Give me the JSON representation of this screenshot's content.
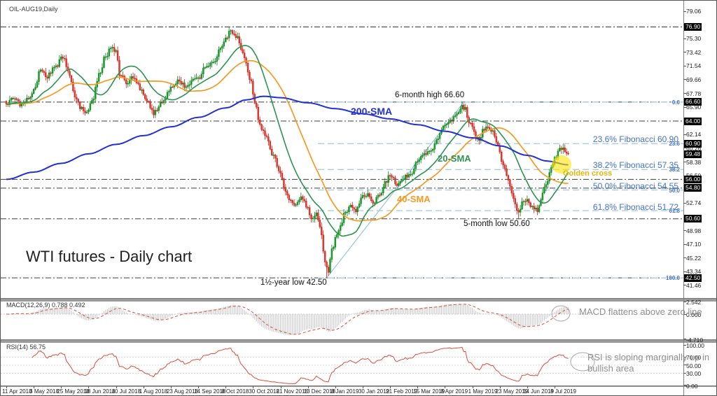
{
  "window": {
    "instrument_label": "OIL-AUG19,Daily"
  },
  "title": "WTI futures - Daily chart",
  "colors": {
    "candle_up": "#12a128",
    "candle_up_edge": "#0a7a17",
    "candle_down": "#ea352b",
    "candle_down_edge": "#bf1f16",
    "sma200": "#2230d4",
    "sma20": "#2b9450",
    "sma40": "#f59a23",
    "fib_line": "#a9cdea",
    "fib_text": "#4472c4",
    "sr_line": "#3f3f3f",
    "trendline": "#9cc3e5",
    "golden_highlight": "#ffe400",
    "golden_text": "#e3b505",
    "macd_hist": "#c9c9c9",
    "macd_signal": "#dd4b39",
    "rsi_line": "#dd4b39",
    "note_gray": "#8f8f8f"
  },
  "chart_data": {
    "type": "candlestick",
    "symbol": "OIL-AUG19",
    "timeframe": "Daily",
    "dates": [
      "11 Apr 2018",
      "3 May 2018",
      "25 May 2018",
      "18 Jun 2018",
      "10 Jul 2018",
      "1 Aug 2018",
      "23 Aug 2018",
      "14 Sep 2018",
      "8 Oct 2018",
      "30 Oct 2018",
      "21 Nov 2018",
      "13 Dec 2018",
      "8 Jan 2019",
      "30 Jan 2019",
      "21 Feb 2019",
      "15 Mar 2019",
      "8 Apr 2019",
      "1 May 2019",
      "23 May 2019",
      "14 Jun 2019",
      "8 Jul 2019"
    ],
    "bars_per_date_tick": 16,
    "price_axis": {
      "ticks": [
        "79.06",
        "77.18",
        "75.30",
        "73.42",
        "71.54",
        "69.66",
        "67.78",
        "65.90",
        "62.14",
        "60.26",
        "58.38",
        "56.50",
        "52.74",
        "48.98",
        "47.10",
        "45.22",
        "43.34",
        "41.46"
      ],
      "boxes": [
        "76.90",
        "66.60",
        "64.00",
        "60.90",
        "59.48",
        "56.00",
        "54.80",
        "50.60",
        "42.50"
      ],
      "current_price": 59.48
    },
    "close_anchors": [
      [
        0,
        66.3
      ],
      [
        5,
        67.2
      ],
      [
        9,
        66.2
      ],
      [
        13,
        67.0
      ],
      [
        16,
        68.2
      ],
      [
        20,
        70.9
      ],
      [
        24,
        70.2
      ],
      [
        28,
        71.3
      ],
      [
        33,
        72.6
      ],
      [
        36,
        71.0
      ],
      [
        40,
        67.3
      ],
      [
        44,
        65.6
      ],
      [
        47,
        64.9
      ],
      [
        50,
        66.8
      ],
      [
        54,
        70.2
      ],
      [
        58,
        73.0
      ],
      [
        62,
        74.1
      ],
      [
        64,
        73.5
      ],
      [
        66,
        70.6
      ],
      [
        70,
        69.4
      ],
      [
        74,
        70.0
      ],
      [
        78,
        68.6
      ],
      [
        82,
        66.9
      ],
      [
        86,
        65.1
      ],
      [
        90,
        66.3
      ],
      [
        96,
        68.4
      ],
      [
        100,
        69.6
      ],
      [
        104,
        68.8
      ],
      [
        108,
        69.4
      ],
      [
        112,
        69.9
      ],
      [
        116,
        71.2
      ],
      [
        121,
        72.0
      ],
      [
        125,
        74.0
      ],
      [
        128,
        75.1
      ],
      [
        131,
        76.3
      ],
      [
        134,
        75.6
      ],
      [
        138,
        73.4
      ],
      [
        142,
        70.0
      ],
      [
        145,
        66.8
      ],
      [
        148,
        63.4
      ],
      [
        152,
        61.5
      ],
      [
        156,
        59.3
      ],
      [
        160,
        56.7
      ],
      [
        163,
        54.3
      ],
      [
        166,
        53.0
      ],
      [
        169,
        52.2
      ],
      [
        172,
        53.8
      ],
      [
        175,
        52.4
      ],
      [
        178,
        50.3
      ],
      [
        181,
        51.2
      ],
      [
        184,
        48.5
      ],
      [
        186,
        44.5
      ],
      [
        188,
        43.2
      ],
      [
        190,
        46.2
      ],
      [
        192,
        47.9
      ],
      [
        195,
        49.8
      ],
      [
        198,
        51.5
      ],
      [
        201,
        52.3
      ],
      [
        204,
        51.6
      ],
      [
        208,
        53.6
      ],
      [
        211,
        54.1
      ],
      [
        214,
        52.6
      ],
      [
        218,
        53.9
      ],
      [
        221,
        55.6
      ],
      [
        224,
        56.4
      ],
      [
        228,
        55.4
      ],
      [
        232,
        56.2
      ],
      [
        236,
        56.9
      ],
      [
        240,
        58.4
      ],
      [
        244,
        59.6
      ],
      [
        248,
        60.1
      ],
      [
        252,
        61.8
      ],
      [
        256,
        63.3
      ],
      [
        260,
        63.9
      ],
      [
        263,
        65.3
      ],
      [
        266,
        66.1
      ],
      [
        268,
        65.6
      ],
      [
        270,
        63.6
      ],
      [
        272,
        63.2
      ],
      [
        274,
        61.8
      ],
      [
        276,
        61.4
      ],
      [
        278,
        62.7
      ],
      [
        281,
        63.1
      ],
      [
        284,
        62.6
      ],
      [
        287,
        60.7
      ],
      [
        289,
        58.6
      ],
      [
        291,
        57.3
      ],
      [
        293,
        56.2
      ],
      [
        295,
        54.1
      ],
      [
        297,
        52.5
      ],
      [
        299,
        51.2
      ],
      [
        301,
        52.8
      ],
      [
        304,
        53.4
      ],
      [
        307,
        52.3
      ],
      [
        310,
        51.9
      ],
      [
        312,
        53.2
      ],
      [
        314,
        54.7
      ],
      [
        316,
        56.0
      ],
      [
        318,
        57.4
      ],
      [
        320,
        58.8
      ],
      [
        322,
        59.9
      ],
      [
        324,
        60.4
      ],
      [
        326,
        59.8
      ],
      [
        328,
        59.48
      ]
    ],
    "sma200_anchors": [
      [
        0,
        56.0
      ],
      [
        16,
        57.0
      ],
      [
        32,
        58.2
      ],
      [
        48,
        59.5
      ],
      [
        64,
        60.8
      ],
      [
        80,
        62.0
      ],
      [
        96,
        63.2
      ],
      [
        112,
        64.5
      ],
      [
        128,
        65.8
      ],
      [
        140,
        66.9
      ],
      [
        150,
        67.4
      ],
      [
        160,
        67.2
      ],
      [
        176,
        66.5
      ],
      [
        192,
        65.7
      ],
      [
        208,
        65.0
      ],
      [
        224,
        64.3
      ],
      [
        240,
        63.5
      ],
      [
        256,
        62.6
      ],
      [
        272,
        61.7
      ],
      [
        288,
        60.6
      ],
      [
        304,
        59.3
      ],
      [
        316,
        58.5
      ],
      [
        328,
        58.0
      ]
    ],
    "smas": [
      {
        "name": "20-SMA",
        "period": 20
      },
      {
        "name": "40-SMA",
        "period": 40
      },
      {
        "name": "200-SMA",
        "period": 200
      }
    ],
    "key_points": {
      "top_2018": {
        "bar": 130,
        "price": 76.9
      },
      "high_6_month": {
        "bar": 266,
        "price": 66.6
      },
      "low_18_month": {
        "bar": 187,
        "price": 42.5
      },
      "low_5_month": {
        "bar": 299,
        "price": 50.6
      },
      "last_close": {
        "bar": 328,
        "price": 59.48
      }
    },
    "fibonacci": {
      "swing_high": 66.6,
      "swing_low": 42.5,
      "levels": [
        {
          "pct": "0.0",
          "price": 66.6
        },
        {
          "pct": "23.6",
          "price": 60.9
        },
        {
          "pct": "38.2",
          "price": 57.35
        },
        {
          "pct": "50.0",
          "price": 54.55
        },
        {
          "pct": "61.8",
          "price": 51.72
        },
        {
          "pct": "100.0",
          "price": 42.5
        }
      ]
    },
    "sr_lines": [
      76.9,
      66.6,
      64.0,
      56.0,
      54.8,
      50.6,
      42.5
    ],
    "trendline": {
      "from_bar": 187,
      "from_price": 42.5,
      "to_bar": 267,
      "to_price": 66.6
    },
    "indicators": {
      "macd": {
        "label": "MACD(12,26,9) 0.788 0.492",
        "fast": 12,
        "slow": 26,
        "signal_period": 9,
        "main_value": 0.788,
        "signal_value": 0.492,
        "axis": [
          "2.542",
          "0.000",
          "-4.710"
        ]
      },
      "rsi": {
        "label": "RSI(14) 56.75",
        "period": 14,
        "value": 56.75,
        "levels": [
          70,
          50,
          30
        ],
        "axis": [
          "100.00",
          "70.00",
          "50.00",
          "30.00",
          "0.00"
        ]
      }
    }
  },
  "annotations": {
    "high6m": "6-month high 66.60",
    "low5m": "5-month low 50.60",
    "low18m": "1½-year low 42.50",
    "golden_cross": "Golden cross",
    "sma200": "200-SMA",
    "sma20": "20-SMA",
    "sma40": "40-SMA",
    "fib_texts": [
      "23.6% Fibonacci 60.90",
      "38.2% Fibonacci 57.35",
      "50.0% Fibonacci 54.55",
      "61.8% Fibonacci 51.72"
    ],
    "macd_note": "MACD flattens above zero line",
    "rsi_note": "RSI is sloping marginally up in bullish area"
  }
}
